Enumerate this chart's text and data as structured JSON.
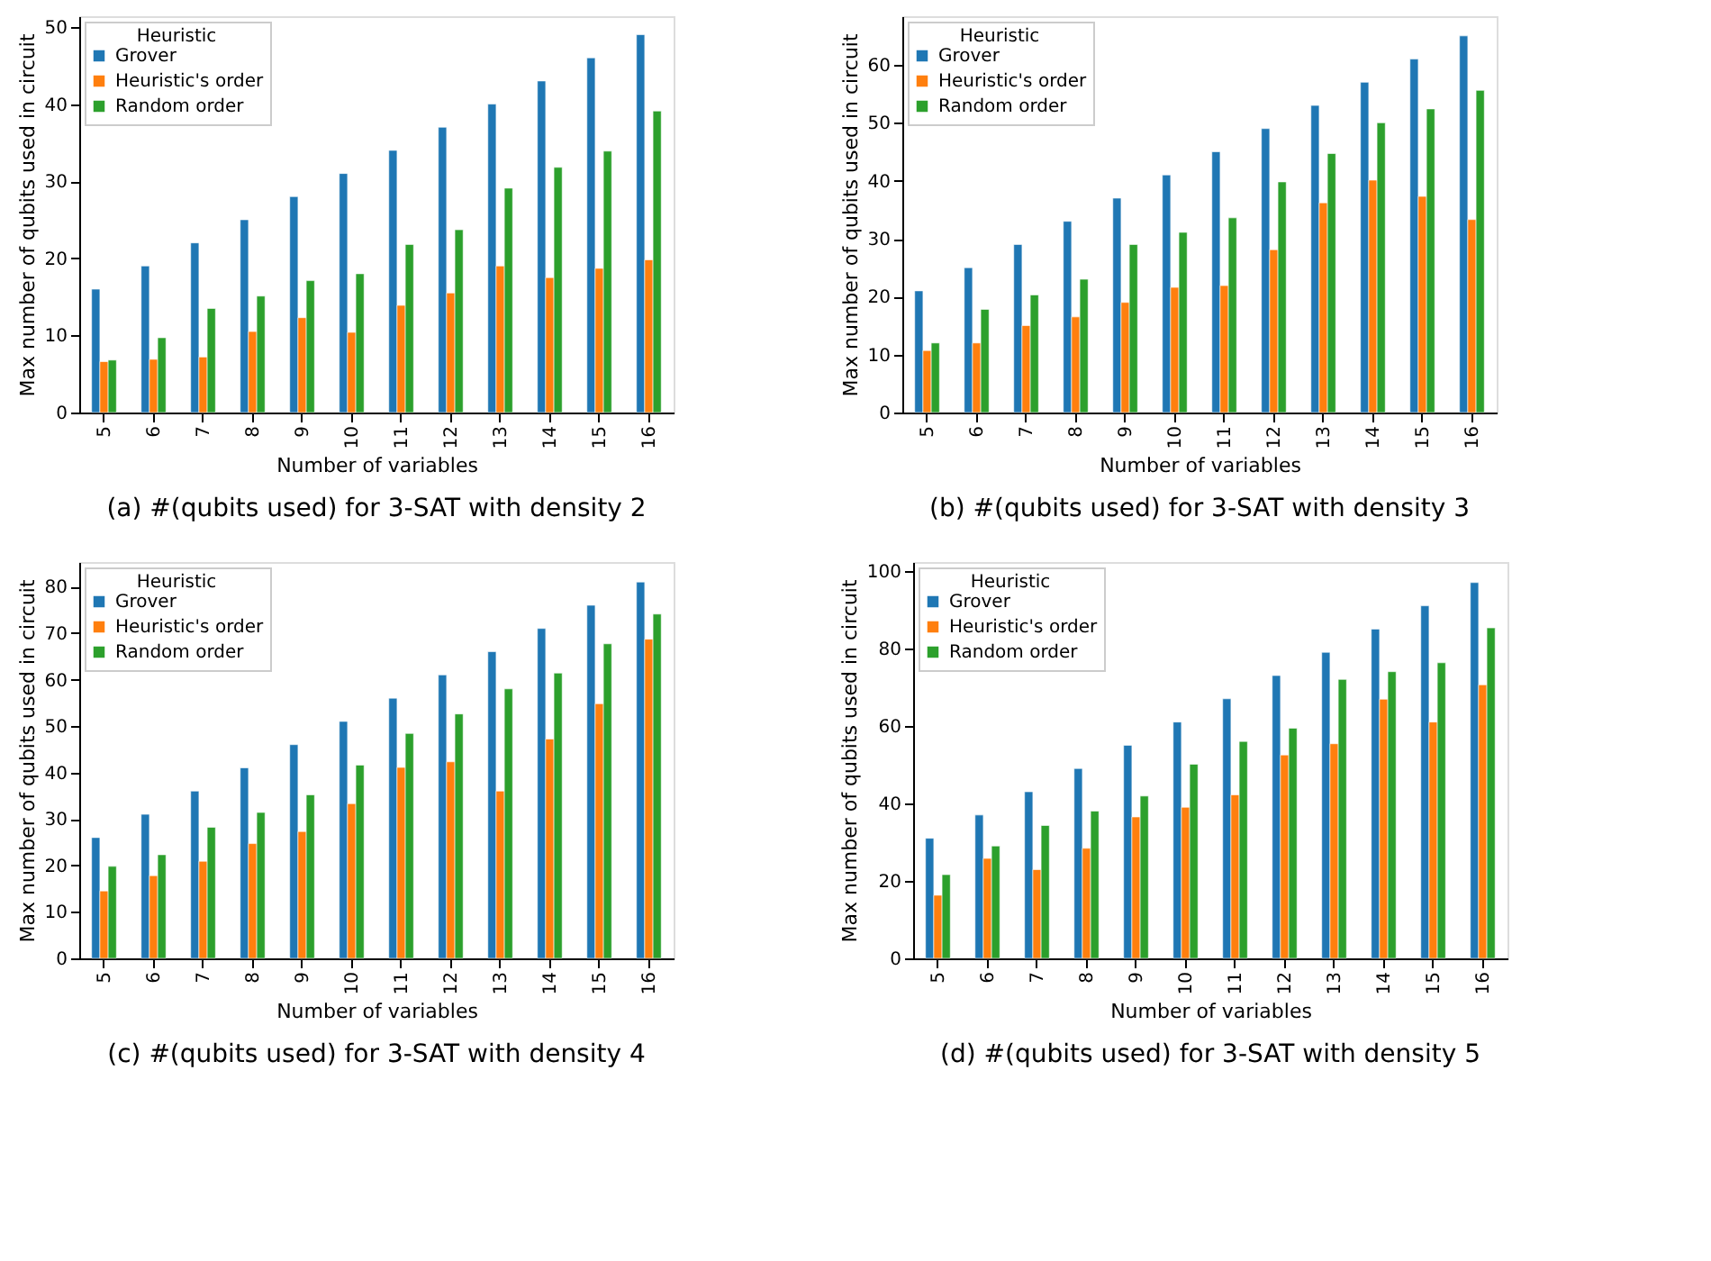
{
  "chart_data": [
    {
      "type": "bar",
      "title": "(a) #(qubits used) for 3-SAT with density 2",
      "xlabel": "Number of variables",
      "ylabel": "Max number of qubits used in circuit",
      "legend_title": "Heuristic",
      "legend": "top left",
      "grid": false,
      "categories": [
        "5",
        "6",
        "7",
        "8",
        "9",
        "10",
        "11",
        "12",
        "13",
        "14",
        "15",
        "16"
      ],
      "ylim": [
        0,
        51.4
      ],
      "yticks": [
        0,
        10,
        20,
        30,
        40,
        50
      ],
      "series": [
        {
          "name": "Grover",
          "color": "#1f77b4",
          "values": [
            16,
            19,
            22,
            25,
            28,
            31,
            34,
            37,
            40,
            43,
            46,
            49
          ]
        },
        {
          "name": "Heuristic's order",
          "color": "#ff7f0e",
          "values": [
            6.6,
            6.9,
            7.2,
            10.5,
            12.3,
            10.4,
            13.9,
            15.5,
            19,
            17.5,
            18.7,
            19.8
          ]
        },
        {
          "name": "Random order",
          "color": "#2ca02c",
          "values": [
            6.8,
            9.7,
            13.5,
            15.1,
            17.1,
            18,
            21.8,
            23.7,
            29.1,
            31.8,
            33.9,
            39.1
          ]
        }
      ]
    },
    {
      "type": "bar",
      "title": "(b) #(qubits used) for 3-SAT with density 3",
      "xlabel": "Number of variables",
      "ylabel": "Max number of qubits used in circuit",
      "legend_title": "Heuristic",
      "legend": "top left",
      "grid": false,
      "categories": [
        "5",
        "6",
        "7",
        "8",
        "9",
        "10",
        "11",
        "12",
        "13",
        "14",
        "15",
        "16"
      ],
      "ylim": [
        0,
        68.4
      ],
      "yticks": [
        0,
        10,
        20,
        30,
        40,
        50,
        60
      ],
      "series": [
        {
          "name": "Grover",
          "color": "#1f77b4",
          "values": [
            21,
            25,
            29,
            33,
            37,
            41,
            45,
            49,
            53,
            57,
            61,
            65
          ]
        },
        {
          "name": "Heuristic's order",
          "color": "#ff7f0e",
          "values": [
            10.7,
            12,
            15,
            16.5,
            19,
            21.6,
            21.9,
            28.1,
            36.2,
            40.1,
            37.3,
            33.3
          ]
        },
        {
          "name": "Random order",
          "color": "#2ca02c",
          "values": [
            12,
            17.8,
            20.3,
            23,
            29,
            31.1,
            33.6,
            39.8,
            44.7,
            50,
            52.4,
            55.6
          ]
        }
      ]
    },
    {
      "type": "bar",
      "title": "(c) #(qubits used) for 3-SAT with density 4",
      "xlabel": "Number of variables",
      "ylabel": "Max number of qubits used in circuit",
      "legend_title": "Heuristic",
      "legend": "top left",
      "grid": false,
      "categories": [
        "5",
        "6",
        "7",
        "8",
        "9",
        "10",
        "11",
        "12",
        "13",
        "14",
        "15",
        "16"
      ],
      "ylim": [
        0,
        85.3
      ],
      "yticks": [
        0,
        10,
        20,
        30,
        40,
        50,
        60,
        70,
        80
      ],
      "series": [
        {
          "name": "Grover",
          "color": "#1f77b4",
          "values": [
            26,
            31,
            36,
            41,
            46,
            51,
            56,
            61,
            66,
            71,
            76,
            81
          ]
        },
        {
          "name": "Heuristic's order",
          "color": "#ff7f0e",
          "values": [
            14.5,
            17.8,
            20.9,
            24.7,
            27.3,
            33.3,
            41.1,
            42.3,
            36,
            47.2,
            54.8,
            68.7
          ]
        },
        {
          "name": "Random order",
          "color": "#2ca02c",
          "values": [
            19.8,
            22.3,
            28.2,
            31.4,
            35.2,
            41.6,
            48.4,
            52.6,
            58,
            61.4,
            67.7,
            74.1
          ]
        }
      ]
    },
    {
      "type": "bar",
      "title": "(d) #(qubits used) for 3-SAT with density 5",
      "xlabel": "Number of variables",
      "ylabel": "Max number of qubits used in circuit",
      "legend_title": "Heuristic",
      "legend": "top left",
      "grid": false,
      "categories": [
        "5",
        "6",
        "7",
        "8",
        "9",
        "10",
        "11",
        "12",
        "13",
        "14",
        "15",
        "16"
      ],
      "ylim": [
        0,
        102.3
      ],
      "yticks": [
        0,
        20,
        40,
        60,
        80,
        100
      ],
      "series": [
        {
          "name": "Grover",
          "color": "#1f77b4",
          "values": [
            31,
            37,
            43,
            49,
            55,
            61,
            67,
            73,
            79,
            85,
            91,
            97
          ]
        },
        {
          "name": "Heuristic's order",
          "color": "#ff7f0e",
          "values": [
            16.3,
            25.8,
            22.9,
            28.4,
            36.5,
            39,
            42.2,
            52.5,
            55.4,
            66.9,
            61,
            70.6
          ]
        },
        {
          "name": "Random order",
          "color": "#2ca02c",
          "values": [
            21.6,
            29,
            34.3,
            38,
            41.9,
            50.1,
            56,
            59.4,
            72,
            74,
            76.3,
            85.3
          ]
        }
      ]
    }
  ]
}
